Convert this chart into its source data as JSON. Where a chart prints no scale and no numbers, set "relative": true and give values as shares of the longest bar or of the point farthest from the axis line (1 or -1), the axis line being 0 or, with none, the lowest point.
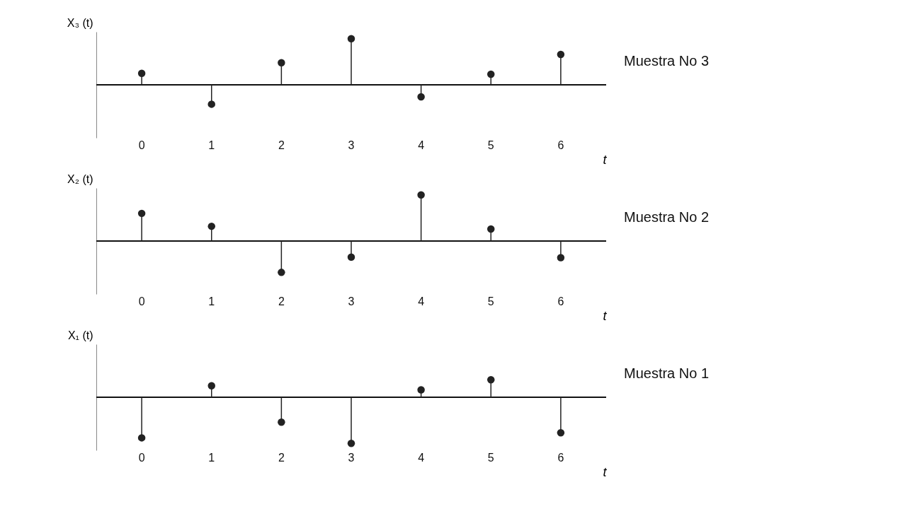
{
  "chart_data": [
    {
      "type": "lollipop",
      "relative": true,
      "xlabel": "t",
      "ylabel": "X₃ (t)",
      "categories": [
        "0",
        "1",
        "2",
        "3",
        "4",
        "5",
        "6"
      ],
      "legend": false,
      "marker": "circle",
      "tick_labels": "x",
      "series": [
        {
          "name": "Muestra No 3",
          "color": "#222222",
          "values": [
            0.25,
            -0.42,
            0.48,
            1,
            -0.26,
            0.23,
            0.66
          ]
        }
      ]
    },
    {
      "type": "lollipop",
      "relative": true,
      "xlabel": "t",
      "ylabel": "X₂ (t)",
      "categories": [
        "0",
        "1",
        "2",
        "3",
        "4",
        "5",
        "6"
      ],
      "legend": false,
      "marker": "circle",
      "tick_labels": "x",
      "series": [
        {
          "name": "Muestra No 2",
          "color": "#222222",
          "values": [
            0.6,
            0.32,
            -0.68,
            -0.35,
            1,
            0.26,
            -0.36
          ]
        }
      ]
    },
    {
      "type": "lollipop",
      "relative": true,
      "xlabel": "t",
      "ylabel": "X₁ (t)",
      "categories": [
        "0",
        "1",
        "2",
        "3",
        "4",
        "5",
        "6"
      ],
      "legend": false,
      "marker": "circle",
      "tick_labels": "x",
      "series": [
        {
          "name": "Muestra No 1",
          "color": "#222222",
          "values": [
            -0.88,
            0.25,
            -0.54,
            -1,
            0.16,
            0.38,
            -0.77
          ]
        }
      ]
    }
  ]
}
